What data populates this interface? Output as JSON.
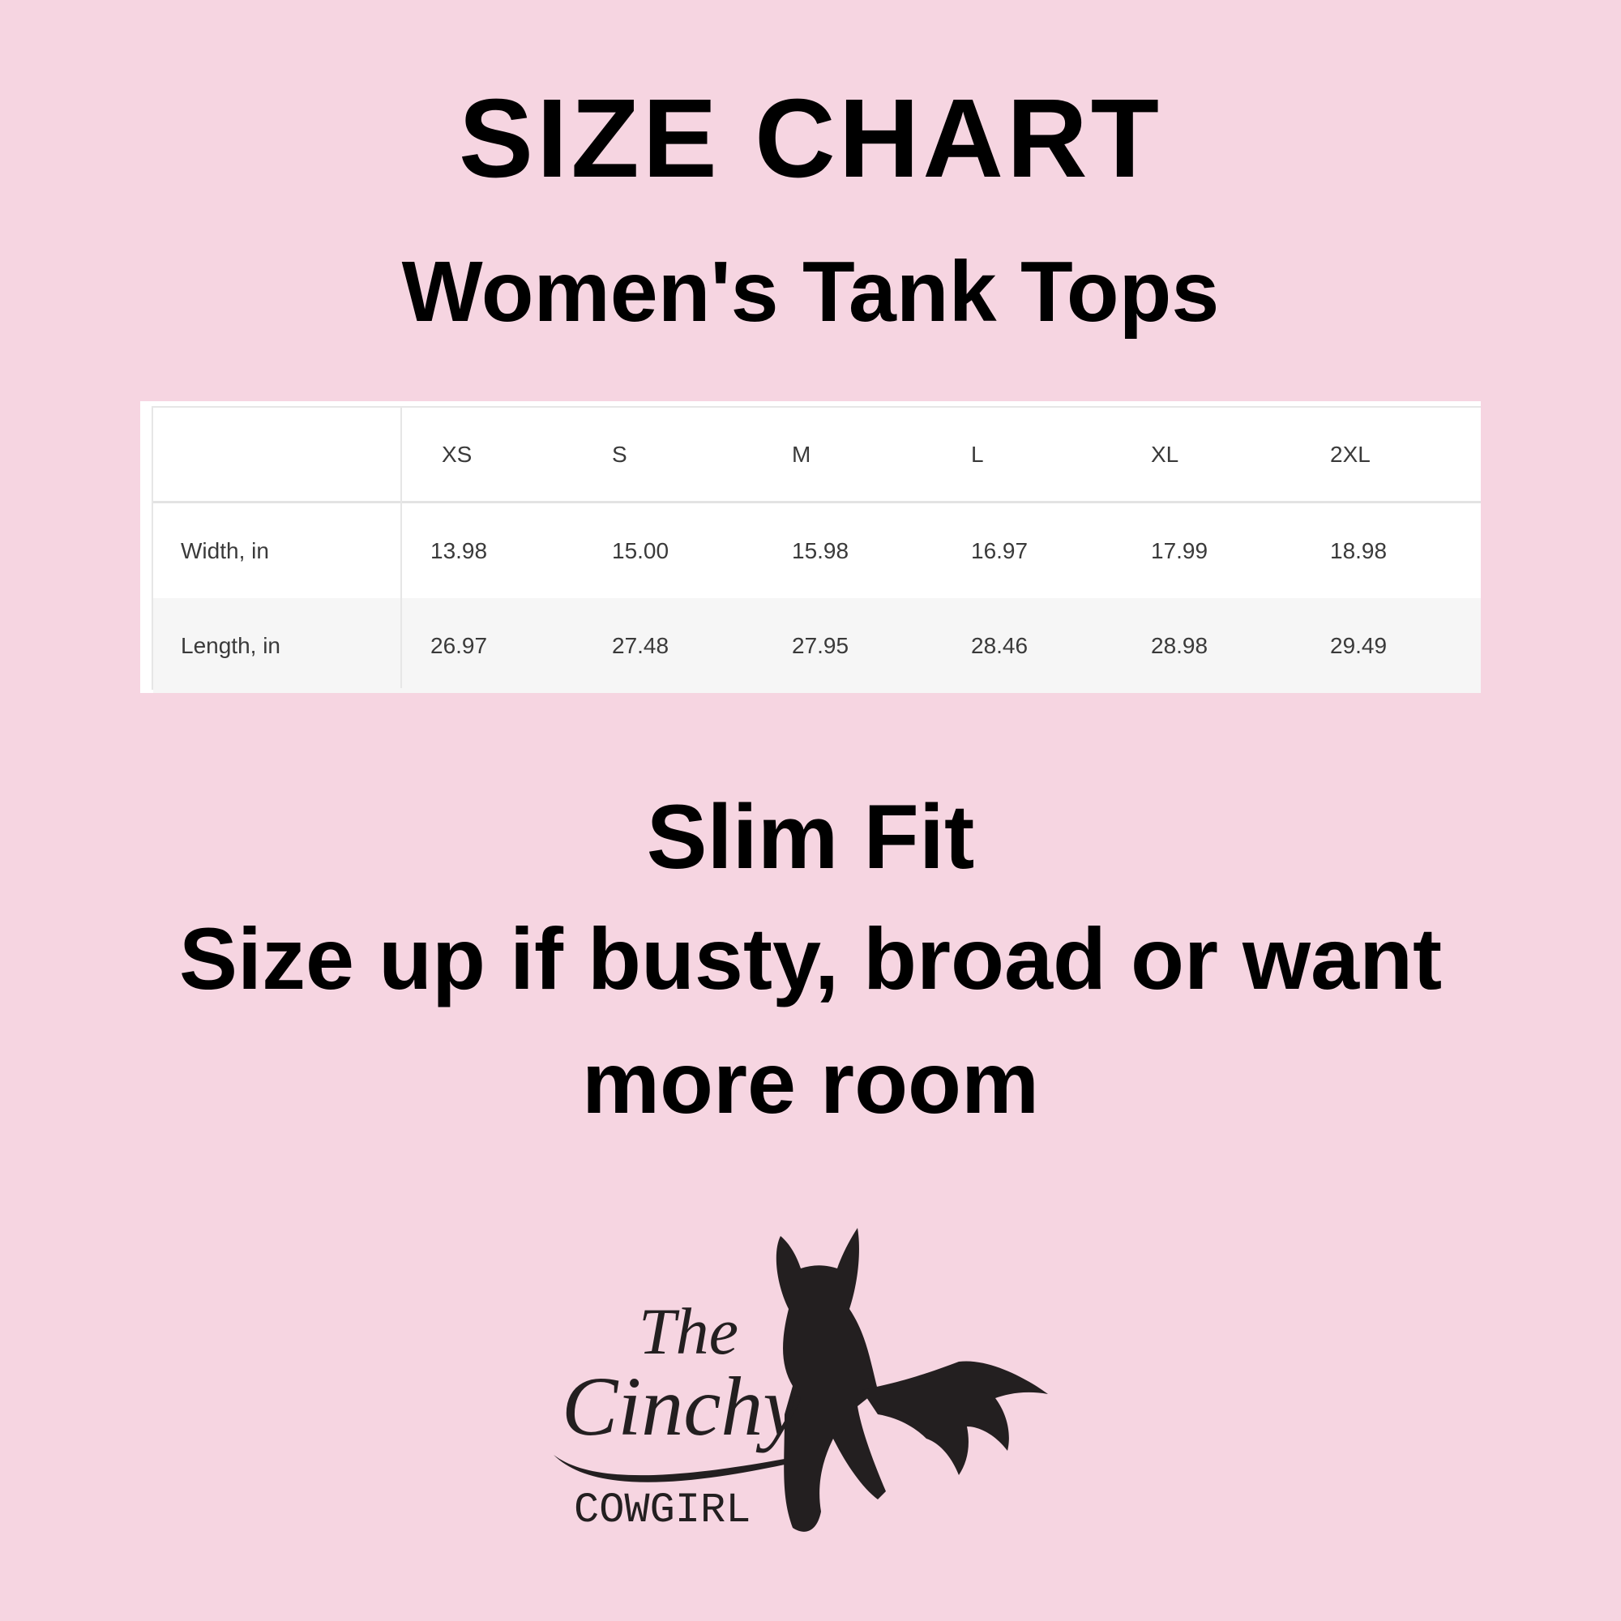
{
  "title": "SIZE CHART",
  "subtitle": "Women's Tank Tops",
  "size_table": {
    "columns": [
      "",
      "XS",
      "S",
      "M",
      "L",
      "XL",
      "2XL"
    ],
    "rows": [
      {
        "label": "Width, in",
        "values": [
          "13.98",
          "15.00",
          "15.98",
          "16.97",
          "17.99",
          "18.98"
        ]
      },
      {
        "label": "Length, in",
        "values": [
          "26.97",
          "27.48",
          "27.95",
          "28.46",
          "28.98",
          "29.49"
        ]
      }
    ]
  },
  "notes": {
    "fit": "Slim Fit",
    "line2": "Size up if busty, broad or want",
    "line3": "more room"
  },
  "logo": {
    "line1": "The",
    "line2": "Cinchy",
    "line3": "COWGIRL",
    "icon": "horse-head-icon"
  },
  "colors": {
    "background": "#f6d5e1",
    "text": "#000000",
    "logo": "#231f20"
  }
}
